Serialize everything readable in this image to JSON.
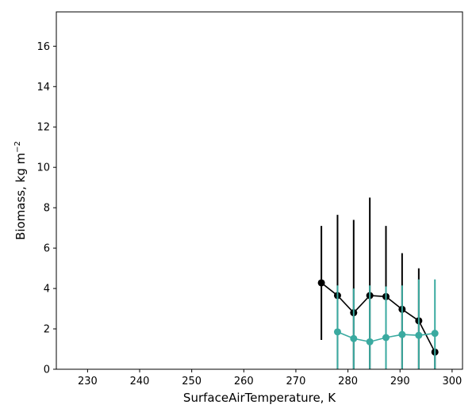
{
  "chart_data": {
    "type": "line",
    "title": "",
    "xlabel": "SurfaceAirTemperature,  K",
    "ylabel_base": "Biomass,  kg m",
    "ylabel_exponent": "−2",
    "xlim": [
      224,
      302
    ],
    "ylim": [
      0,
      17.7
    ],
    "xticks": [
      230,
      240,
      250,
      260,
      270,
      280,
      290,
      300
    ],
    "yticks": [
      0,
      2,
      4,
      6,
      8,
      10,
      12,
      14,
      16
    ],
    "grid": false,
    "legend": "none",
    "series": [
      {
        "color": "#000000",
        "x": [
          274.9,
          278.0,
          281.1,
          284.2,
          287.3,
          290.4,
          293.6,
          296.7
        ],
        "y": [
          4.28,
          3.65,
          2.8,
          3.65,
          3.6,
          2.97,
          2.4,
          0.85
        ],
        "err_low": [
          1.45,
          0.0,
          0.0,
          0.0,
          0.0,
          0.0,
          0.0,
          0.0
        ],
        "err_high": [
          7.1,
          7.65,
          7.4,
          8.5,
          7.1,
          5.75,
          5.0,
          0.85
        ]
      },
      {
        "color": "#3aaaa0",
        "x": [
          278.0,
          281.1,
          284.2,
          287.3,
          290.4,
          293.6,
          296.7
        ],
        "y": [
          1.85,
          1.52,
          1.36,
          1.57,
          1.72,
          1.68,
          1.78
        ],
        "err_low": [
          0.0,
          0.0,
          0.0,
          0.0,
          0.0,
          0.0,
          0.0
        ],
        "err_high": [
          4.15,
          4.0,
          4.15,
          4.1,
          4.15,
          4.45,
          4.45
        ]
      }
    ]
  }
}
